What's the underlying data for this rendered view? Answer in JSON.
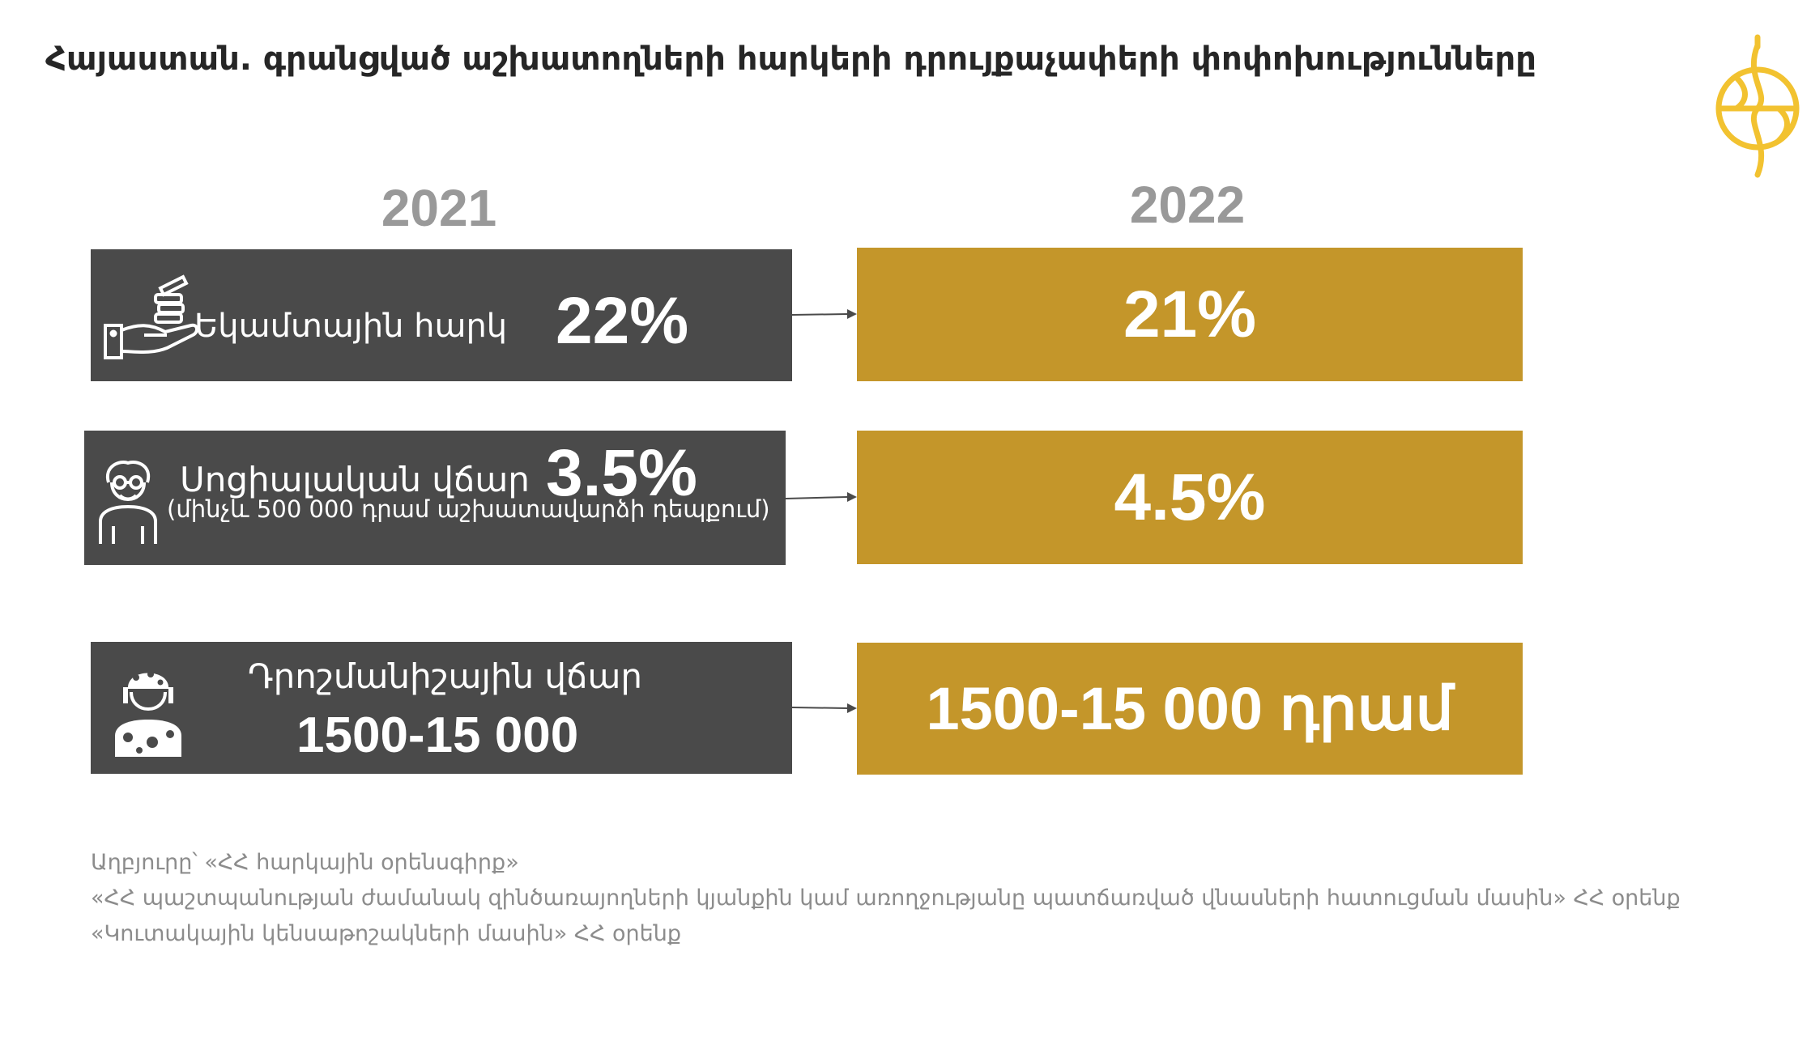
{
  "title": "Հայաստան. գրանցված աշխատողների հարկերի դրույքաչափերի փոփոխությունները",
  "years": {
    "left": "2021",
    "right": "2022"
  },
  "rows": [
    {
      "label": "Եկամտային հարկ",
      "value_2021": "22%",
      "value_2022": "21%",
      "icon": "hand-coins-icon"
    },
    {
      "label": "Սոցիալական վճար",
      "value_2021": "3.5%",
      "note": "(մինչև 500 000 դրամ աշխատավարձի դեպքում)",
      "value_2022": "4.5%",
      "icon": "elderly-person-icon"
    },
    {
      "label": "Դրոշմանիշային վճար",
      "value_2021": "1500-15 000",
      "value_2022": "1500-15 000 դրամ",
      "icon": "soldier-icon"
    }
  ],
  "sources": [
    "Աղբյուրը՝ «ՀՀ հարկային օրենսգիրք»",
    "«ՀՀ պաշտպանության ժամանակ զինծառայողների կյանքին կամ առողջությանը պատճառված վնասների հատուցման մասին» ՀՀ օրենք",
    "«Կուտակային կենսաթոշակների մասին» ՀՀ օրենք"
  ],
  "colors": {
    "dark_box": "#4a4a4a",
    "gold_box": "#c4962a",
    "year_text": "#999999",
    "logo": "#f2c230"
  }
}
